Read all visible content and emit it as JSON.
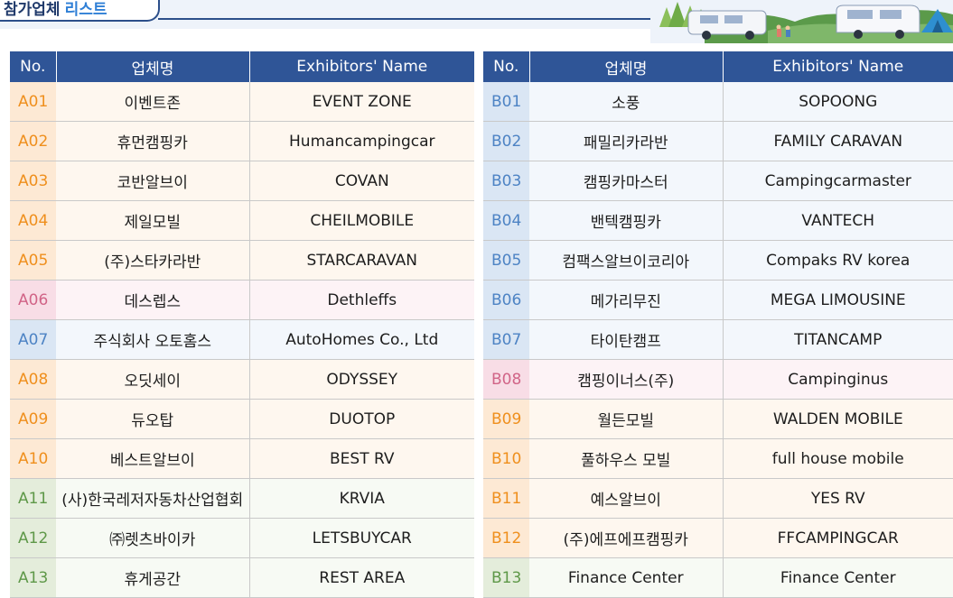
{
  "header": {
    "title_part1": "참가업체",
    "title_part2": "리스트"
  },
  "colors": {
    "header_bg": "#2f5597",
    "orange": "#ef8f1d",
    "pink": "#d16487",
    "blue": "#4d83c4",
    "green": "#5e9848"
  },
  "tables": [
    {
      "headers": [
        "No.",
        "업체명",
        "Exhibitors' Name"
      ],
      "rows": [
        {
          "no": "A01",
          "kr": "이벤트존",
          "en": "EVENT ZONE",
          "color": "orange"
        },
        {
          "no": "A02",
          "kr": "휴먼캠핑카",
          "en": "Humancampingcar",
          "color": "orange"
        },
        {
          "no": "A03",
          "kr": "코반알브이",
          "en": "COVAN",
          "color": "orange"
        },
        {
          "no": "A04",
          "kr": "제일모빌",
          "en": "CHEILMOBILE",
          "color": "orange"
        },
        {
          "no": "A05",
          "kr": "(주)스타카라반",
          "en": "STARCARAVAN",
          "color": "orange"
        },
        {
          "no": "A06",
          "kr": "데스렙스",
          "en": "Dethleffs",
          "color": "pink"
        },
        {
          "no": "A07",
          "kr": "주식회사 오토홈스",
          "en": "AutoHomes Co., Ltd",
          "color": "blue"
        },
        {
          "no": "A08",
          "kr": "오딧세이",
          "en": "ODYSSEY",
          "color": "orange"
        },
        {
          "no": "A09",
          "kr": "듀오탑",
          "en": "DUOTOP",
          "color": "orange"
        },
        {
          "no": "A10",
          "kr": "베스트알브이",
          "en": "BEST RV",
          "color": "orange"
        },
        {
          "no": "A11",
          "kr": "(사)한국레저자동차산업협회",
          "en": "KRVIA",
          "color": "green"
        },
        {
          "no": "A12",
          "kr": "㈜렛츠바이카",
          "en": "LETSBUYCAR",
          "color": "green"
        },
        {
          "no": "A13",
          "kr": "휴게공간",
          "en": "REST AREA",
          "color": "green"
        }
      ]
    },
    {
      "headers": [
        "No.",
        "업체명",
        "Exhibitors' Name"
      ],
      "rows": [
        {
          "no": "B01",
          "kr": "소풍",
          "en": "SOPOONG",
          "color": "blue"
        },
        {
          "no": "B02",
          "kr": "패밀리카라반",
          "en": "FAMILY CARAVAN",
          "color": "blue"
        },
        {
          "no": "B03",
          "kr": "캠핑카마스터",
          "en": "Campingcarmaster",
          "color": "blue"
        },
        {
          "no": "B04",
          "kr": "밴텍캠핑카",
          "en": "VANTECH",
          "color": "blue"
        },
        {
          "no": "B05",
          "kr": "컴팩스알브이코리아",
          "en": "Compaks RV korea",
          "color": "blue"
        },
        {
          "no": "B06",
          "kr": "메가리무진",
          "en": "MEGA LIMOUSINE",
          "color": "blue"
        },
        {
          "no": "B07",
          "kr": "타이탄캠프",
          "en": "TITANCAMP",
          "color": "blue"
        },
        {
          "no": "B08",
          "kr": "캠핑이너스(주)",
          "en": "Campinginus",
          "color": "pink"
        },
        {
          "no": "B09",
          "kr": "월든모빌",
          "en": "WALDEN MOBILE",
          "color": "orange"
        },
        {
          "no": "B10",
          "kr": "풀하우스 모빌",
          "en": "full house mobile",
          "color": "orange"
        },
        {
          "no": "B11",
          "kr": "예스알브이",
          "en": "YES RV",
          "color": "orange"
        },
        {
          "no": "B12",
          "kr": "(주)에프에프캠핑카",
          "en": "FFCAMPINGCAR",
          "color": "orange"
        },
        {
          "no": "B13",
          "kr": "Finance Center",
          "en": "Finance Center",
          "color": "green"
        }
      ]
    }
  ]
}
